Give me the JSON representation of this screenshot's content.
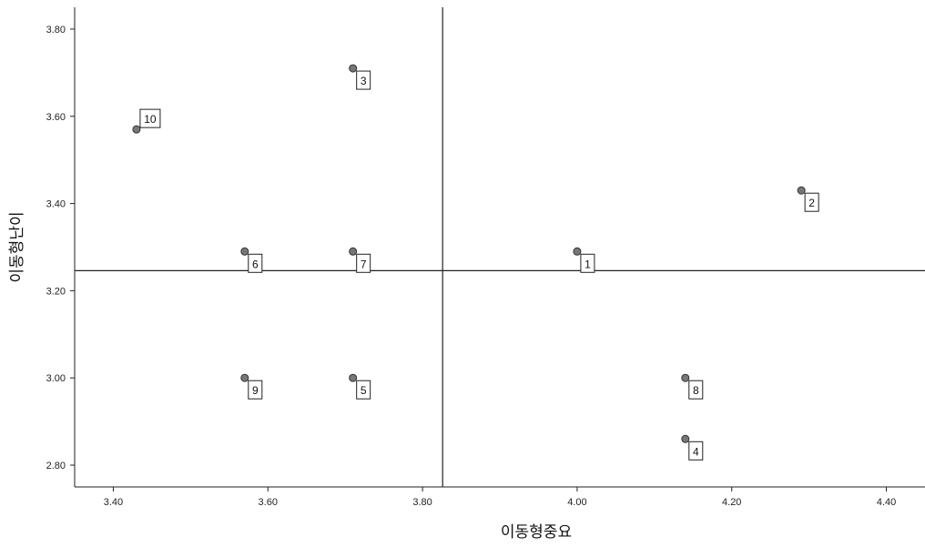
{
  "chart_data": {
    "type": "scatter",
    "xlabel": "이동형중요",
    "ylabel": "이동형난이",
    "xlim": [
      3.35,
      4.45
    ],
    "ylim": [
      2.75,
      3.85
    ],
    "x_ticks": [
      "3.40",
      "3.60",
      "3.80",
      "4.00",
      "4.20",
      "4.40"
    ],
    "y_ticks": [
      "2.80",
      "3.00",
      "3.20",
      "3.40",
      "3.60",
      "3.80"
    ],
    "reference_lines": {
      "x": 3.826,
      "y": 3.246
    },
    "points": [
      {
        "label": "1",
        "x": 4.0,
        "y": 3.29
      },
      {
        "label": "2",
        "x": 4.29,
        "y": 3.43
      },
      {
        "label": "3",
        "x": 3.71,
        "y": 3.71
      },
      {
        "label": "4",
        "x": 4.14,
        "y": 2.86
      },
      {
        "label": "5",
        "x": 3.71,
        "y": 3.0
      },
      {
        "label": "6",
        "x": 3.57,
        "y": 3.29
      },
      {
        "label": "7",
        "x": 3.71,
        "y": 3.29
      },
      {
        "label": "8",
        "x": 4.14,
        "y": 3.0
      },
      {
        "label": "9",
        "x": 3.57,
        "y": 3.0
      },
      {
        "label": "10",
        "x": 3.43,
        "y": 3.57
      }
    ],
    "colors": {
      "point": "#777777",
      "axis": "#222222"
    }
  }
}
